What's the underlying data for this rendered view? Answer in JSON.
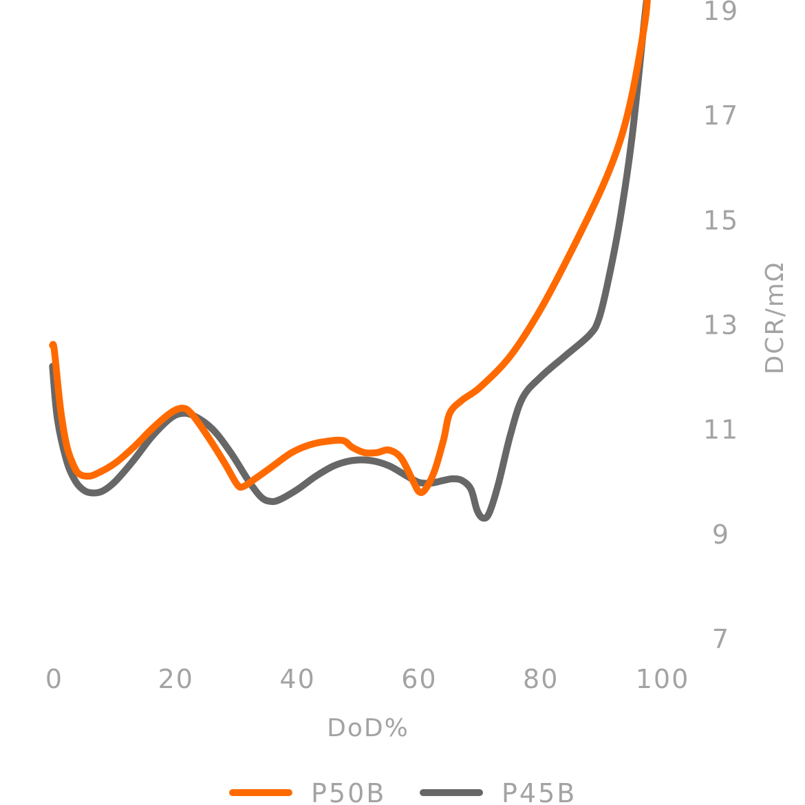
{
  "chart_data": {
    "type": "line",
    "xlabel": "DoD%",
    "ylabel": "DCR/mΩ",
    "xlim": [
      0,
      100
    ],
    "ylim": [
      7,
      19
    ],
    "x_ticks": [
      "0",
      "20",
      "40",
      "60",
      "80",
      "100"
    ],
    "y_ticks": [
      "7",
      "9",
      "11",
      "13",
      "15",
      "17",
      "19"
    ],
    "y_axis_side": "right",
    "grid": false,
    "legend_position": "bottom",
    "series": [
      {
        "name": "P50B",
        "color": "#ff6a00",
        "points": [
          [
            -0.3,
            12.6
          ],
          [
            0,
            12.5
          ],
          [
            1,
            11.4
          ],
          [
            2,
            10.7
          ],
          [
            3,
            10.35
          ],
          [
            4,
            10.15
          ],
          [
            5.5,
            10.1
          ],
          [
            7,
            10.15
          ],
          [
            10,
            10.35
          ],
          [
            13,
            10.65
          ],
          [
            16,
            11.0
          ],
          [
            19,
            11.3
          ],
          [
            21,
            11.4
          ],
          [
            22.5,
            11.3
          ],
          [
            25,
            10.9
          ],
          [
            28,
            10.35
          ],
          [
            30,
            9.95
          ],
          [
            31,
            9.9
          ],
          [
            33,
            10.05
          ],
          [
            36,
            10.3
          ],
          [
            39,
            10.55
          ],
          [
            42,
            10.7
          ],
          [
            45,
            10.77
          ],
          [
            47.5,
            10.78
          ],
          [
            49,
            10.65
          ],
          [
            51,
            10.55
          ],
          [
            53,
            10.55
          ],
          [
            55,
            10.6
          ],
          [
            57,
            10.45
          ],
          [
            59,
            10.0
          ],
          [
            60,
            9.8
          ],
          [
            61,
            9.85
          ],
          [
            62.5,
            10.2
          ],
          [
            64,
            10.8
          ],
          [
            65,
            11.3
          ],
          [
            67,
            11.55
          ],
          [
            70,
            11.8
          ],
          [
            75,
            12.4
          ],
          [
            80,
            13.3
          ],
          [
            85,
            14.4
          ],
          [
            90,
            15.6
          ],
          [
            93,
            16.5
          ],
          [
            95,
            17.4
          ],
          [
            97,
            18.7
          ],
          [
            97.5,
            19.2
          ]
        ]
      },
      {
        "name": "P45B",
        "color": "#676767",
        "points": [
          [
            -0.3,
            12.2
          ],
          [
            0.5,
            11.2
          ],
          [
            2,
            10.4
          ],
          [
            3.5,
            10.0
          ],
          [
            5,
            9.82
          ],
          [
            6.5,
            9.78
          ],
          [
            8,
            9.82
          ],
          [
            10,
            10.0
          ],
          [
            13,
            10.4
          ],
          [
            16,
            10.85
          ],
          [
            19,
            11.2
          ],
          [
            21,
            11.3
          ],
          [
            23,
            11.25
          ],
          [
            26,
            11.0
          ],
          [
            29,
            10.55
          ],
          [
            32,
            10.0
          ],
          [
            34,
            9.7
          ],
          [
            35.5,
            9.62
          ],
          [
            37,
            9.65
          ],
          [
            40,
            9.85
          ],
          [
            43,
            10.1
          ],
          [
            46,
            10.3
          ],
          [
            49,
            10.4
          ],
          [
            52,
            10.4
          ],
          [
            55,
            10.3
          ],
          [
            58,
            10.1
          ],
          [
            60,
            9.98
          ],
          [
            62,
            9.97
          ],
          [
            64,
            10.02
          ],
          [
            65.5,
            10.05
          ],
          [
            67,
            10.02
          ],
          [
            68.5,
            9.85
          ],
          [
            69.5,
            9.45
          ],
          [
            70.5,
            9.3
          ],
          [
            71.5,
            9.4
          ],
          [
            73,
            9.95
          ],
          [
            75,
            10.9
          ],
          [
            77,
            11.6
          ],
          [
            80,
            12.0
          ],
          [
            84,
            12.4
          ],
          [
            88,
            12.8
          ],
          [
            89.5,
            13.1
          ],
          [
            91,
            13.8
          ],
          [
            93,
            15.0
          ],
          [
            95,
            16.6
          ],
          [
            97,
            18.8
          ],
          [
            97.5,
            19.3
          ]
        ]
      }
    ]
  }
}
